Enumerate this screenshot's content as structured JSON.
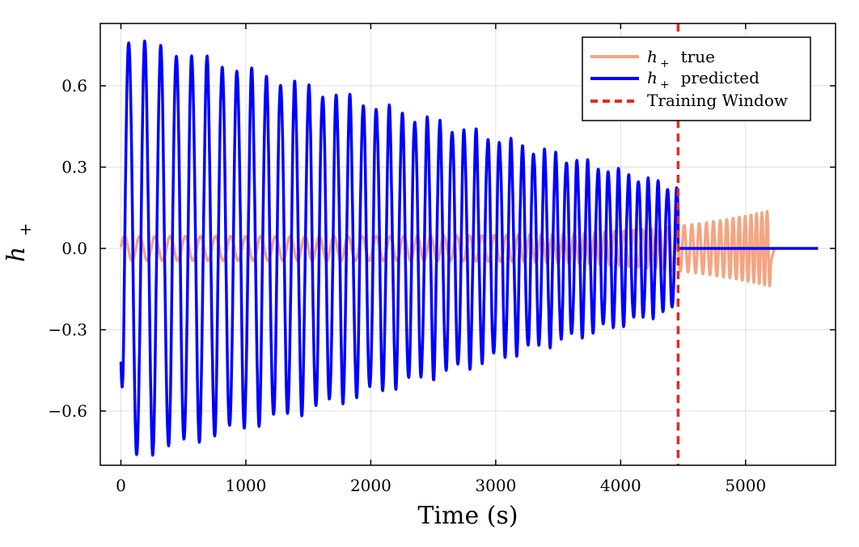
{
  "chart_data": {
    "type": "line",
    "title": "",
    "xlabel": "Time (s)",
    "ylabel_base": "h",
    "ylabel_sub": "+",
    "xlim": [
      -165,
      5720
    ],
    "ylim": [
      -0.8,
      0.83
    ],
    "xticks": [
      0,
      1000,
      2000,
      3000,
      4000,
      5000
    ],
    "xtick_labels": [
      "0",
      "1000",
      "2000",
      "3000",
      "4000",
      "5000"
    ],
    "yticks": [
      0.6,
      0.3,
      0.0,
      -0.3,
      -0.6
    ],
    "ytick_labels": [
      "0.6",
      "0.3",
      "0.0",
      "−0.3",
      "−0.6"
    ],
    "grid": true,
    "legend_position": "top-right",
    "training_window_x": 4460,
    "series": [
      {
        "name": "h+ true",
        "legend_base": "h",
        "legend_sub": "+",
        "legend_rest": "true",
        "color": "#f4a582",
        "t_start": 0,
        "t_end": 5200,
        "amp_start": 0.045,
        "amp_end": 0.14,
        "merger_x": 5200,
        "ringdown_x": 5230,
        "period_start": 122,
        "period_end": 40
      },
      {
        "name": "h+ predicted",
        "legend_base": "h",
        "legend_sub": "+",
        "legend_rest": "predicted",
        "color": "#0000ff",
        "t_start": 0,
        "t_end": 4460,
        "amp_start": 0.78,
        "amp_end": 0.22,
        "period_start": 130,
        "period_end": 75,
        "flat_to": 5580
      },
      {
        "name": "Training Window",
        "legend_text": "Training Window",
        "color": "#e8281e",
        "dashed": true
      }
    ]
  }
}
